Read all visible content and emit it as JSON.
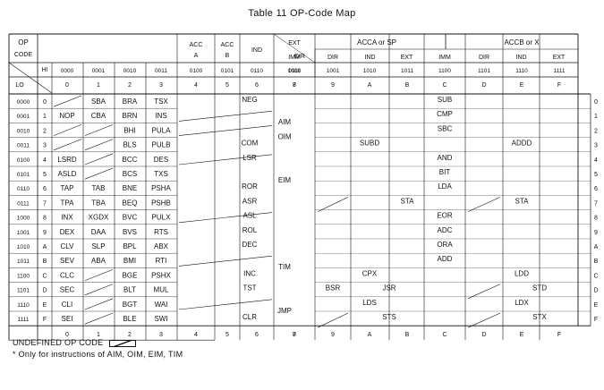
{
  "title": "Table 11  OP-Code Map",
  "header": {
    "op_code": "OP CODE",
    "hi": "HI",
    "lo": "LO",
    "acc_a": "ACC A",
    "acc_b": "ACC B",
    "ind": "IND",
    "ext_dir": "EXT DIR",
    "acca_sp": "ACCA or SP",
    "accb_x": "ACCB or X",
    "modes": [
      "IMM",
      "DIR",
      "IND",
      "EXT",
      "IMM",
      "DIR",
      "IND",
      "EXT"
    ],
    "hi_bin": [
      "0000",
      "0001",
      "0010",
      "0011",
      "0100",
      "0101",
      "0110",
      "0111",
      "1000",
      "1001",
      "1010",
      "1011",
      "1100",
      "1101",
      "1110",
      "1111"
    ],
    "hi_hex": [
      "0",
      "1",
      "2",
      "3",
      "4",
      "5",
      "6",
      "7",
      "8",
      "9",
      "A",
      "B",
      "C",
      "D",
      "E",
      "F"
    ]
  },
  "rows": [
    {
      "bin": "0000",
      "hex": "0",
      "c0": "",
      "c1": "SBA",
      "c2": "BRA",
      "c3": "TSX"
    },
    {
      "bin": "0001",
      "hex": "1",
      "c0": "NOP",
      "c1": "CBA",
      "c2": "BRN",
      "c3": "INS"
    },
    {
      "bin": "0010",
      "hex": "2",
      "c0": "",
      "c1": "",
      "c2": "BHI",
      "c3": "PULA"
    },
    {
      "bin": "0011",
      "hex": "3",
      "c0": "",
      "c1": "",
      "c2": "BLS",
      "c3": "PULB"
    },
    {
      "bin": "0100",
      "hex": "4",
      "c0": "LSRD",
      "c1": "",
      "c2": "BCC",
      "c3": "DES"
    },
    {
      "bin": "0101",
      "hex": "5",
      "c0": "ASLD",
      "c1": "",
      "c2": "BCS",
      "c3": "TXS"
    },
    {
      "bin": "0110",
      "hex": "6",
      "c0": "TAP",
      "c1": "TAB",
      "c2": "BNE",
      "c3": "PSHA"
    },
    {
      "bin": "0111",
      "hex": "7",
      "c0": "TPA",
      "c1": "TBA",
      "c2": "BEQ",
      "c3": "PSHB"
    },
    {
      "bin": "1000",
      "hex": "8",
      "c0": "INX",
      "c1": "XGDX",
      "c2": "BVC",
      "c3": "PULX"
    },
    {
      "bin": "1001",
      "hex": "9",
      "c0": "DEX",
      "c1": "DAA",
      "c2": "BVS",
      "c3": "RTS"
    },
    {
      "bin": "1010",
      "hex": "A",
      "c0": "CLV",
      "c1": "SLP",
      "c2": "BPL",
      "c3": "ABX"
    },
    {
      "bin": "1011",
      "hex": "B",
      "c0": "SEV",
      "c1": "ABA",
      "c2": "BMI",
      "c3": "RTI"
    },
    {
      "bin": "1100",
      "hex": "C",
      "c0": "CLC",
      "c1": "",
      "c2": "BGE",
      "c3": "PSHX"
    },
    {
      "bin": "1101",
      "hex": "D",
      "c0": "SEC",
      "c1": "",
      "c2": "BLT",
      "c3": "MUL"
    },
    {
      "bin": "1110",
      "hex": "E",
      "c0": "CLI",
      "c1": "",
      "c2": "BGT",
      "c3": "WAI"
    },
    {
      "bin": "1111",
      "hex": "F",
      "c0": "SEI",
      "c1": "",
      "c2": "BLE",
      "c3": "SWI"
    }
  ],
  "col45": [
    "NEG",
    "",
    "",
    "COM",
    "LSR",
    "",
    "ROR",
    "ASR",
    "ASL",
    "ROL",
    "DEC",
    "",
    "INC",
    "TST",
    "",
    "CLR"
  ],
  "col67": [
    {
      "row": 1,
      "text": "AIM"
    },
    {
      "row": 2,
      "text": "OIM"
    },
    {
      "row": 5,
      "text": "EIM"
    },
    {
      "row": 11,
      "text": "TIM"
    },
    {
      "row": 14,
      "text": "JMP"
    }
  ],
  "right_ops": [
    {
      "row": 0,
      "span": "all",
      "text": "SUB"
    },
    {
      "row": 1,
      "span": "all",
      "text": "CMP"
    },
    {
      "row": 2,
      "span": "all",
      "text": "SBC"
    },
    {
      "row": 3,
      "span": "left",
      "text": "SUBD"
    },
    {
      "row": 3,
      "span": "right",
      "text": "ADDD"
    },
    {
      "row": 4,
      "span": "all",
      "text": "AND"
    },
    {
      "row": 5,
      "span": "all",
      "text": "BIT"
    },
    {
      "row": 6,
      "span": "all",
      "text": "LDA"
    },
    {
      "row": 7,
      "span": "leftsta",
      "text": "STA"
    },
    {
      "row": 7,
      "span": "rightsta",
      "text": "STA"
    },
    {
      "row": 8,
      "span": "all",
      "text": "EOR"
    },
    {
      "row": 9,
      "span": "all",
      "text": "ADC"
    },
    {
      "row": 10,
      "span": "all",
      "text": "ORA"
    },
    {
      "row": 11,
      "span": "all",
      "text": "ADD"
    },
    {
      "row": 12,
      "span": "left",
      "text": "CPX"
    },
    {
      "row": 12,
      "span": "right",
      "text": "LDD"
    },
    {
      "row": 13,
      "span": "bsr",
      "text": "BSR"
    },
    {
      "row": 13,
      "span": "jsr",
      "text": "JSR"
    },
    {
      "row": 13,
      "span": "std",
      "text": "STD"
    },
    {
      "row": 14,
      "span": "left",
      "text": "LDS"
    },
    {
      "row": 14,
      "span": "right",
      "text": "LDX"
    },
    {
      "row": 15,
      "span": "sts",
      "text": "STS"
    },
    {
      "row": 15,
      "span": "stx",
      "text": "STX"
    }
  ],
  "footer": {
    "undefined": "UNDEFINED OP CODE",
    "note": "* Only for instructions of AIM, OIM, EIM, TIM"
  }
}
